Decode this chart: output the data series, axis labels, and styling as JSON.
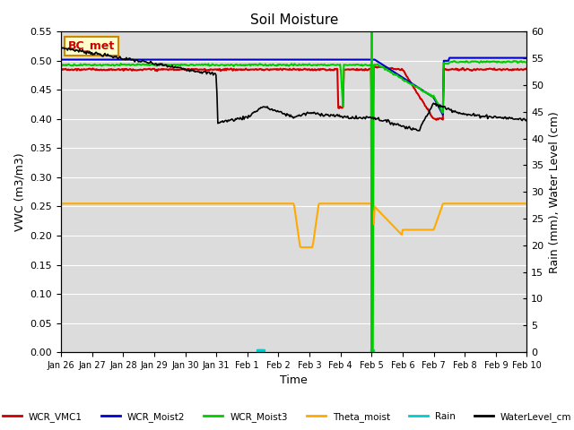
{
  "title": "Soil Moisture",
  "xlabel": "Time",
  "ylabel_left": "VWC (m3/m3)",
  "ylabel_right": "Rain (mm), Water Level (cm)",
  "ylim_left": [
    0.0,
    0.55
  ],
  "ylim_right": [
    0,
    60
  ],
  "yticks_left": [
    0.0,
    0.05,
    0.1,
    0.15,
    0.2,
    0.25,
    0.3,
    0.35,
    0.4,
    0.45,
    0.5,
    0.55
  ],
  "yticks_right": [
    0,
    5,
    10,
    15,
    20,
    25,
    30,
    35,
    40,
    45,
    50,
    55,
    60
  ],
  "annotation_text": "BC_met",
  "annotation_color": "#cc0000",
  "annotation_bg": "#ffffcc",
  "bg_color": "#dcdcdc",
  "colors": {
    "WCR_VMC1": "#cc0000",
    "WCR_Moist2": "#0000cc",
    "WCR_Moist3": "#00cc00",
    "Theta_moist": "#ffaa00",
    "Rain": "#00cccc",
    "WaterLevel_cm": "#000000",
    "vline": "#00cc00"
  },
  "xtick_labels": [
    "Jan 26",
    "Jan 27",
    "Jan 28",
    "Jan 29",
    "Jan 30",
    "Jan 31",
    "Feb 1",
    "Feb 2",
    "Feb 3",
    "Feb 4",
    "Feb 5",
    "Feb 6",
    "Feb 7",
    "Feb 8",
    "Feb 9",
    "Feb 10"
  ],
  "vline_day": 10
}
